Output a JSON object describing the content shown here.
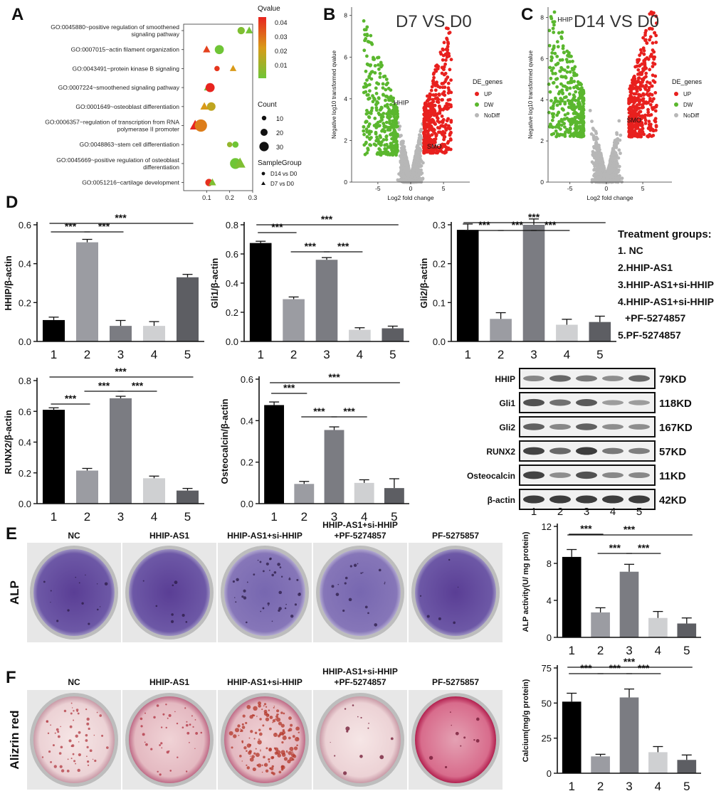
{
  "panel_letters": {
    "a": "A",
    "b": "B",
    "c": "C",
    "d": "D",
    "e": "E",
    "f": "F"
  },
  "chart_data": [
    {
      "id": "A",
      "type": "scatter",
      "subtype": "bubble",
      "xlim": [
        0,
        0.3
      ],
      "xticks": [
        0.1,
        0.2,
        0.3
      ],
      "terms": [
        "GO:0045880~positive regulation of smoothened signaling pathway",
        "GO:0007015~actin filament organization",
        "GO:0043491~protein kinase B signaling",
        "GO:0007224~smoothened signaling pathway",
        "GO:0001649~osteoblast differentiation",
        "GO:0006357~regulation of transcription from RNA polymerase II promoter",
        "GO:0048863~stem cell differentiation",
        "GO:0045669~positive regulation of osteoblast differentiation",
        "GO:0051216~cartilage development"
      ],
      "points": [
        {
          "term": 0,
          "group": "D14 vs D0",
          "x": 0.25,
          "count": 8,
          "q": 0.008
        },
        {
          "term": 0,
          "group": "D7 vs D0",
          "x": 0.285,
          "count": 8,
          "q": 0.006
        },
        {
          "term": 1,
          "group": "D7 vs D0",
          "x": 0.1,
          "count": 8,
          "q": 0.04
        },
        {
          "term": 1,
          "group": "D14 vs D0",
          "x": 0.155,
          "count": 14,
          "q": 0.005
        },
        {
          "term": 2,
          "group": "D14 vs D0",
          "x": 0.145,
          "count": 3,
          "q": 0.042
        },
        {
          "term": 2,
          "group": "D7 vs D0",
          "x": 0.215,
          "count": 6,
          "q": 0.025
        },
        {
          "term": 3,
          "group": "D7 vs D0",
          "x": 0.105,
          "count": 9,
          "q": 0.005
        },
        {
          "term": 3,
          "group": "D14 vs D0",
          "x": 0.115,
          "count": 14,
          "q": 0.045
        },
        {
          "term": 4,
          "group": "D7 vs D0",
          "x": 0.09,
          "count": 10,
          "q": 0.025
        },
        {
          "term": 4,
          "group": "D14 vs D0",
          "x": 0.12,
          "count": 12,
          "q": 0.02
        },
        {
          "term": 5,
          "group": "D7 vs D0",
          "x": 0.05,
          "count": 20,
          "q": 0.045
        },
        {
          "term": 5,
          "group": "D14 vs D0",
          "x": 0.075,
          "count": 30,
          "q": 0.03
        },
        {
          "term": 6,
          "group": "D14 vs D0",
          "x": 0.2,
          "count": 3,
          "q": 0.012
        },
        {
          "term": 6,
          "group": "D14 vs D0",
          "x": 0.225,
          "count": 5,
          "q": 0.005
        },
        {
          "term": 7,
          "group": "D14 vs D0",
          "x": 0.225,
          "count": 22,
          "q": 0.005
        },
        {
          "term": 7,
          "group": "D7 vs D0",
          "x": 0.245,
          "count": 22,
          "q": 0.008
        },
        {
          "term": 8,
          "group": "D14 vs D0",
          "x": 0.11,
          "count": 8,
          "q": 0.043
        },
        {
          "term": 8,
          "group": "D7 vs D0",
          "x": 0.125,
          "count": 8,
          "q": 0.008
        }
      ],
      "legend": {
        "qvalue_title": "Qvalue",
        "qvalue_ticks": [
          "0.04",
          "0.03",
          "0.02",
          "0.01"
        ],
        "count_title": "Count",
        "count_ticks": [
          "10",
          "20",
          "30"
        ],
        "group_title": "SampleGroup",
        "group_items": [
          "D14 vs D0",
          "D7 vs D0"
        ]
      }
    },
    {
      "id": "B",
      "type": "scatter",
      "subtype": "volcano",
      "title": "D7 VS D0",
      "xlabel": "Log2 fold change",
      "ylabel": "Negative log10 transformed qvalue",
      "xlim": [
        -9,
        9
      ],
      "ylim": [
        0,
        8.4
      ],
      "xticks": [
        -5,
        0,
        5
      ],
      "yticks": [
        0,
        2,
        4,
        6,
        8
      ],
      "labels": [
        {
          "text": "HHIP",
          "x": -2.6,
          "y": 3.7
        },
        {
          "text": "SMO",
          "x": 2.5,
          "y": 1.6
        }
      ],
      "legend_title": "DE_genes",
      "legend_items": [
        "UP",
        "DW",
        "NoDiff"
      ]
    },
    {
      "id": "C",
      "type": "scatter",
      "subtype": "volcano",
      "title": "D14 VS D0",
      "xlabel": "Log2 fold change",
      "ylabel": "Negative log10 transformed qvalue",
      "xlim": [
        -8,
        9
      ],
      "ylim": [
        0,
        8.5
      ],
      "xticks": [
        -5,
        0,
        5
      ],
      "yticks": [
        0,
        2,
        4,
        6,
        8
      ],
      "labels": [
        {
          "text": "HHIP",
          "x": -6.7,
          "y": 7.8
        },
        {
          "text": "SMO",
          "x": 2.8,
          "y": 2.9
        }
      ],
      "legend_title": "DE_genes",
      "legend_items": [
        "UP",
        "DW",
        "NoDiff"
      ]
    },
    {
      "id": "D1",
      "type": "bar",
      "ylabel": "HHIP/β-actin",
      "categories": [
        "1",
        "2",
        "3",
        "4",
        "5"
      ],
      "values": [
        0.11,
        0.51,
        0.08,
        0.08,
        0.33
      ],
      "errors": [
        0.015,
        0.015,
        0.028,
        0.022,
        0.015
      ],
      "ylim": [
        0,
        0.6
      ],
      "yticks": [
        "0.0",
        "0.2",
        "0.4",
        "0.6"
      ],
      "sig": [
        {
          "from": 1,
          "to": 2,
          "label": "***"
        },
        {
          "from": 2,
          "to": 3,
          "label": "***"
        },
        {
          "from": 1,
          "to": 5,
          "label": "***"
        }
      ]
    },
    {
      "id": "D2",
      "type": "bar",
      "ylabel": "Gli1/β-actin",
      "categories": [
        "1",
        "2",
        "3",
        "4",
        "5"
      ],
      "values": [
        0.675,
        0.29,
        0.56,
        0.08,
        0.09
      ],
      "errors": [
        0.012,
        0.015,
        0.015,
        0.014,
        0.015
      ],
      "ylim": [
        0,
        0.8
      ],
      "yticks": [
        "0.0",
        "0.2",
        "0.4",
        "0.6",
        "0.8"
      ],
      "sig": [
        {
          "from": 1,
          "to": 2,
          "label": "***"
        },
        {
          "from": 2,
          "to": 3,
          "label": "***"
        },
        {
          "from": 3,
          "to": 4,
          "label": "***"
        },
        {
          "from": 1,
          "to": 5,
          "label": "***"
        }
      ]
    },
    {
      "id": "D3",
      "type": "bar",
      "ylabel": "Gli2/β-actin",
      "categories": [
        "1",
        "2",
        "3",
        "4",
        "5"
      ],
      "values": [
        0.287,
        0.058,
        0.3,
        0.043,
        0.05
      ],
      "errors": [
        0.015,
        0.016,
        0.015,
        0.014,
        0.015
      ],
      "ylim": [
        0,
        0.3
      ],
      "yticks": [
        "0.0",
        "0.1",
        "0.2",
        "0.3"
      ],
      "sig": [
        {
          "from": 1,
          "to": 2,
          "label": "***"
        },
        {
          "from": 2,
          "to": 3,
          "label": "***"
        },
        {
          "from": 3,
          "to": 4,
          "label": "***"
        },
        {
          "from": 1,
          "to": 5,
          "label": "***"
        }
      ]
    },
    {
      "id": "D4",
      "type": "bar",
      "ylabel": "RUNX2/β-actin",
      "categories": [
        "1",
        "2",
        "3",
        "4",
        "5"
      ],
      "values": [
        0.61,
        0.215,
        0.685,
        0.165,
        0.085
      ],
      "errors": [
        0.013,
        0.014,
        0.013,
        0.014,
        0.014
      ],
      "ylim": [
        0,
        0.8
      ],
      "yticks": [
        "0.0",
        "0.2",
        "0.4",
        "0.6",
        "0.8"
      ],
      "sig": [
        {
          "from": 1,
          "to": 2,
          "label": "***"
        },
        {
          "from": 2,
          "to": 3,
          "label": "***"
        },
        {
          "from": 3,
          "to": 4,
          "label": "***"
        },
        {
          "from": 1,
          "to": 5,
          "label": "***"
        }
      ]
    },
    {
      "id": "D5",
      "type": "bar",
      "ylabel": "Osteocalcin/β-actin",
      "categories": [
        "1",
        "2",
        "3",
        "4",
        "5"
      ],
      "values": [
        0.475,
        0.095,
        0.355,
        0.1,
        0.075
      ],
      "errors": [
        0.015,
        0.012,
        0.015,
        0.015,
        0.045
      ],
      "ylim": [
        0,
        0.6
      ],
      "yticks": [
        "0.0",
        "0.2",
        "0.4",
        "0.6"
      ],
      "sig": [
        {
          "from": 1,
          "to": 2,
          "label": "***"
        },
        {
          "from": 2,
          "to": 3,
          "label": "***"
        },
        {
          "from": 3,
          "to": 4,
          "label": "***"
        },
        {
          "from": 1,
          "to": 5,
          "label": "***"
        }
      ]
    },
    {
      "id": "E",
      "type": "bar",
      "ylabel": "ALP activity(U/ mg protein)",
      "categories": [
        "1",
        "2",
        "3",
        "4",
        "5"
      ],
      "values": [
        8.7,
        2.7,
        7.1,
        2.1,
        1.5
      ],
      "errors": [
        0.8,
        0.5,
        0.8,
        0.7,
        0.6
      ],
      "ylim": [
        0,
        12
      ],
      "yticks": [
        "0",
        "4",
        "8",
        "12"
      ],
      "sig": [
        {
          "from": 1,
          "to": 2,
          "label": "***"
        },
        {
          "from": 2,
          "to": 3,
          "label": "***"
        },
        {
          "from": 3,
          "to": 4,
          "label": "***"
        },
        {
          "from": 1,
          "to": 5,
          "label": "***"
        }
      ]
    },
    {
      "id": "F",
      "type": "bar",
      "ylabel": "Calcium(mg/g protein)",
      "categories": [
        "1",
        "2",
        "3",
        "4",
        "5"
      ],
      "values": [
        51,
        12,
        54,
        15,
        9.5
      ],
      "errors": [
        6,
        1.5,
        6,
        4,
        3.5
      ],
      "ylim": [
        0,
        75
      ],
      "yticks": [
        "0",
        "25",
        "50",
        "75"
      ],
      "sig": [
        {
          "from": 1,
          "to": 2,
          "label": "***"
        },
        {
          "from": 2,
          "to": 3,
          "label": "***"
        },
        {
          "from": 3,
          "to": 4,
          "label": "***"
        },
        {
          "from": 1,
          "to": 5,
          "label": "***"
        }
      ]
    }
  ],
  "treatment_legend": {
    "title": "Treatment groups:",
    "items": [
      "1. NC",
      "2.HHIP-AS1",
      "3.HHIP-AS1+si-HHIP",
      "4.HHIP-AS1+si-HHIP",
      "+PF-5274857",
      "5.PF-5274857"
    ]
  },
  "western_blot": {
    "rows": [
      {
        "name": "HHIP",
        "size": "79KD",
        "band": [
          0.35,
          0.55,
          0.45,
          0.3,
          0.55
        ]
      },
      {
        "name": "Gli1",
        "size": "118KD",
        "band": [
          0.7,
          0.5,
          0.65,
          0.2,
          0.2
        ]
      },
      {
        "name": "Gli2",
        "size": "167KD",
        "band": [
          0.6,
          0.35,
          0.6,
          0.3,
          0.3
        ]
      },
      {
        "name": "RUNX2",
        "size": "57KD",
        "band": [
          0.8,
          0.55,
          0.85,
          0.45,
          0.4
        ]
      },
      {
        "name": "Osteocalcin",
        "size": "11KD",
        "band": [
          0.8,
          0.3,
          0.7,
          0.35,
          0.35
        ]
      },
      {
        "name": "β-actin",
        "size": "42KD",
        "band": [
          0.85,
          0.85,
          0.85,
          0.85,
          0.85
        ]
      }
    ],
    "lanes": [
      "1",
      "2",
      "3",
      "4",
      "5"
    ]
  },
  "stain_panels": {
    "e_row_label": "ALP",
    "f_row_label": "Alizrin red",
    "e_titles": [
      [
        "NC"
      ],
      [
        "HHIP-AS1"
      ],
      [
        "HHIP-AS1+si-HHIP"
      ],
      [
        "HHIP-AS1+si-HHIP",
        "+PF-5274857"
      ],
      [
        "PF-5275857"
      ]
    ],
    "f_titles": [
      [
        "NC"
      ],
      [
        "HHIP-AS1"
      ],
      [
        "HHIP-AS1+si-HHIP"
      ],
      [
        "HHIP-AS1+si-HHIP",
        "+PF-5274857"
      ],
      [
        "PF-5275857"
      ]
    ]
  },
  "colors": {
    "bars": [
      "#000000",
      "#9b9ca2",
      "#7b7c82",
      "#cfd0d2",
      "#5d5e63"
    ],
    "up": "#e8201e",
    "dw": "#5ab72e",
    "nodiff": "#b7b7b7",
    "alp": "#6a4fa3",
    "alizarin": "#c23b63"
  }
}
